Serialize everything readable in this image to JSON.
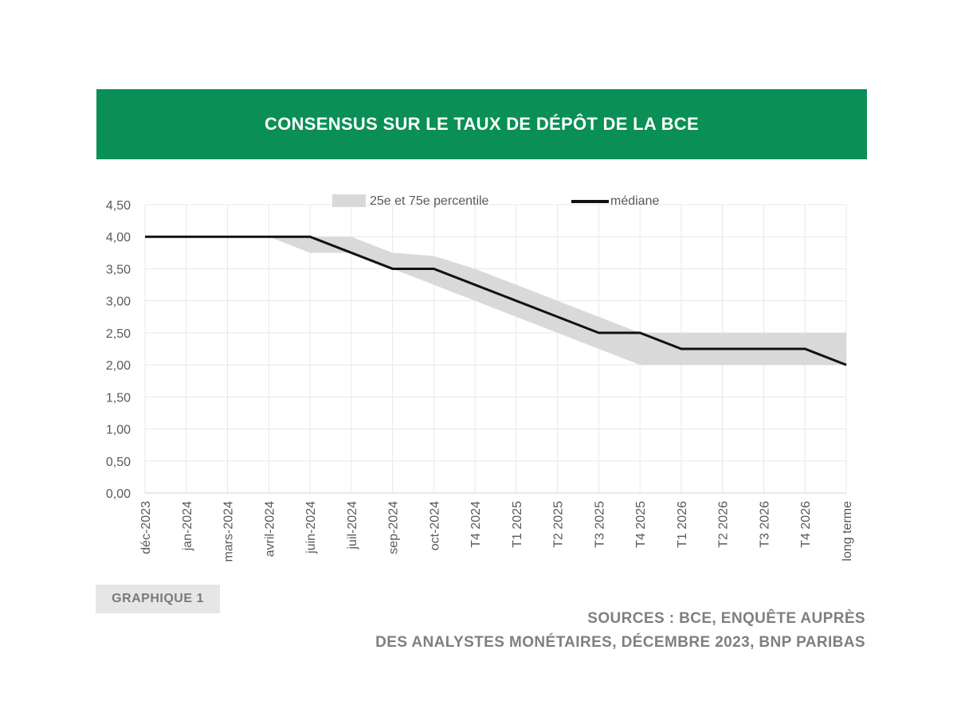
{
  "header": {
    "title": "CONSENSUS SUR LE TAUX DE DÉPÔT DE LA BCE"
  },
  "footer": {
    "badge": "GRAPHIQUE 1",
    "source_line1": "SOURCES : BCE, ENQUÊTE AUPRÈS",
    "source_line2": "DES ANALYSTES MONÉTAIRES, DÉCEMBRE 2023, BNP PARIBAS"
  },
  "chart_data": {
    "type": "line",
    "categories": [
      "déc-2023",
      "jan-2024",
      "mars-2024",
      "avril-2024",
      "juin-2024",
      "juil-2024",
      "sep-2024",
      "oct-2024",
      "T4 2024",
      "T1 2025",
      "T2 2025",
      "T3 2025",
      "T4 2025",
      "T1 2026",
      "T2 2026",
      "T3 2026",
      "T4 2026",
      "long terme"
    ],
    "series": [
      {
        "name": "médiane",
        "type": "line",
        "values": [
          4.0,
          4.0,
          4.0,
          4.0,
          4.0,
          3.75,
          3.5,
          3.5,
          3.25,
          3.0,
          2.75,
          2.5,
          2.5,
          2.25,
          2.25,
          2.25,
          2.25,
          2.0
        ]
      },
      {
        "name": "25e et 75e percentile",
        "type": "band",
        "lower": [
          4.0,
          4.0,
          4.0,
          4.0,
          3.75,
          3.75,
          3.5,
          3.25,
          3.0,
          2.75,
          2.5,
          2.25,
          2.0,
          2.0,
          2.0,
          2.0,
          2.0,
          2.0
        ],
        "upper": [
          4.0,
          4.0,
          4.0,
          4.0,
          4.0,
          4.0,
          3.75,
          3.7,
          3.5,
          3.25,
          3.0,
          2.75,
          2.5,
          2.5,
          2.5,
          2.5,
          2.5,
          2.5
        ]
      }
    ],
    "yticks": [
      "0,00",
      "0,50",
      "1,00",
      "1,50",
      "2,00",
      "2,50",
      "3,00",
      "3,50",
      "4,00",
      "4,50"
    ],
    "ylim": [
      0,
      4.5
    ],
    "grid": true,
    "legend_position": "top",
    "colors": {
      "median": "#111111",
      "band": "#d9d9d9",
      "grid": "#e8e8e8",
      "axis_text": "#595959",
      "header_bg": "#0a8f56"
    }
  }
}
